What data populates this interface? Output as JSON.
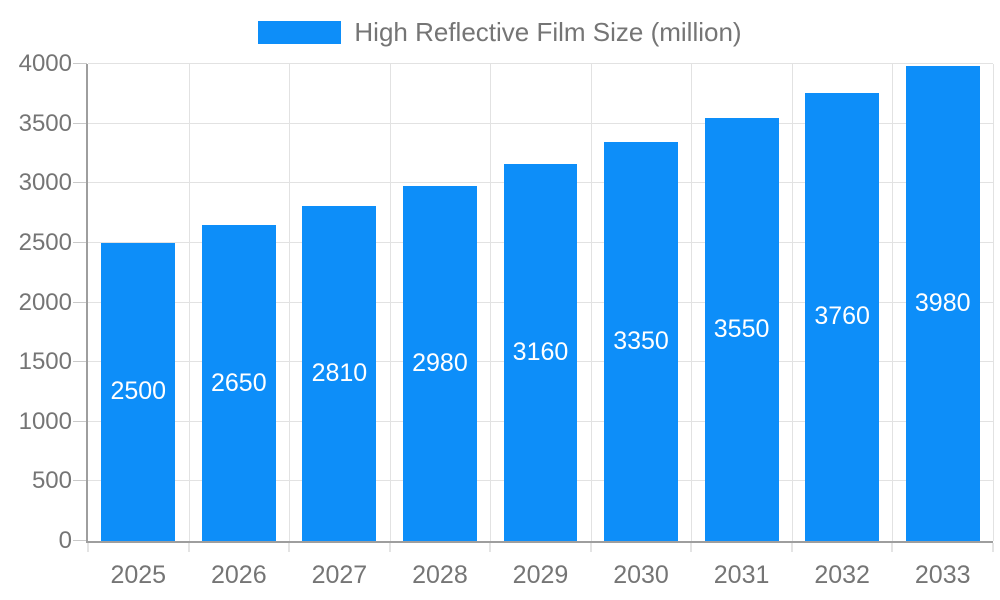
{
  "legend": {
    "label": "High Reflective Film Size (million)"
  },
  "chart_data": {
    "type": "bar",
    "title": "High Reflective Film Size (million)",
    "categories": [
      "2025",
      "2026",
      "2027",
      "2028",
      "2029",
      "2030",
      "2031",
      "2032",
      "2033"
    ],
    "values": [
      2500,
      2650,
      2810,
      2980,
      3160,
      3350,
      3550,
      3760,
      3980
    ],
    "xlabel": "",
    "ylabel": "",
    "ylim": [
      0,
      4000
    ],
    "yticks": [
      0,
      500,
      1000,
      1500,
      2000,
      2500,
      3000,
      3500,
      4000
    ],
    "grid": true,
    "legend_position": "top-center",
    "bar_label_position": "inside-center",
    "colors": {
      "bar": "#0d8ef9",
      "bar_label": "#ffffff",
      "axis_line": "#9e9e9e",
      "grid_line": "#e2e2e2",
      "tick": "#c9c9c9",
      "text": "#757575",
      "background": "#ffffff"
    }
  }
}
